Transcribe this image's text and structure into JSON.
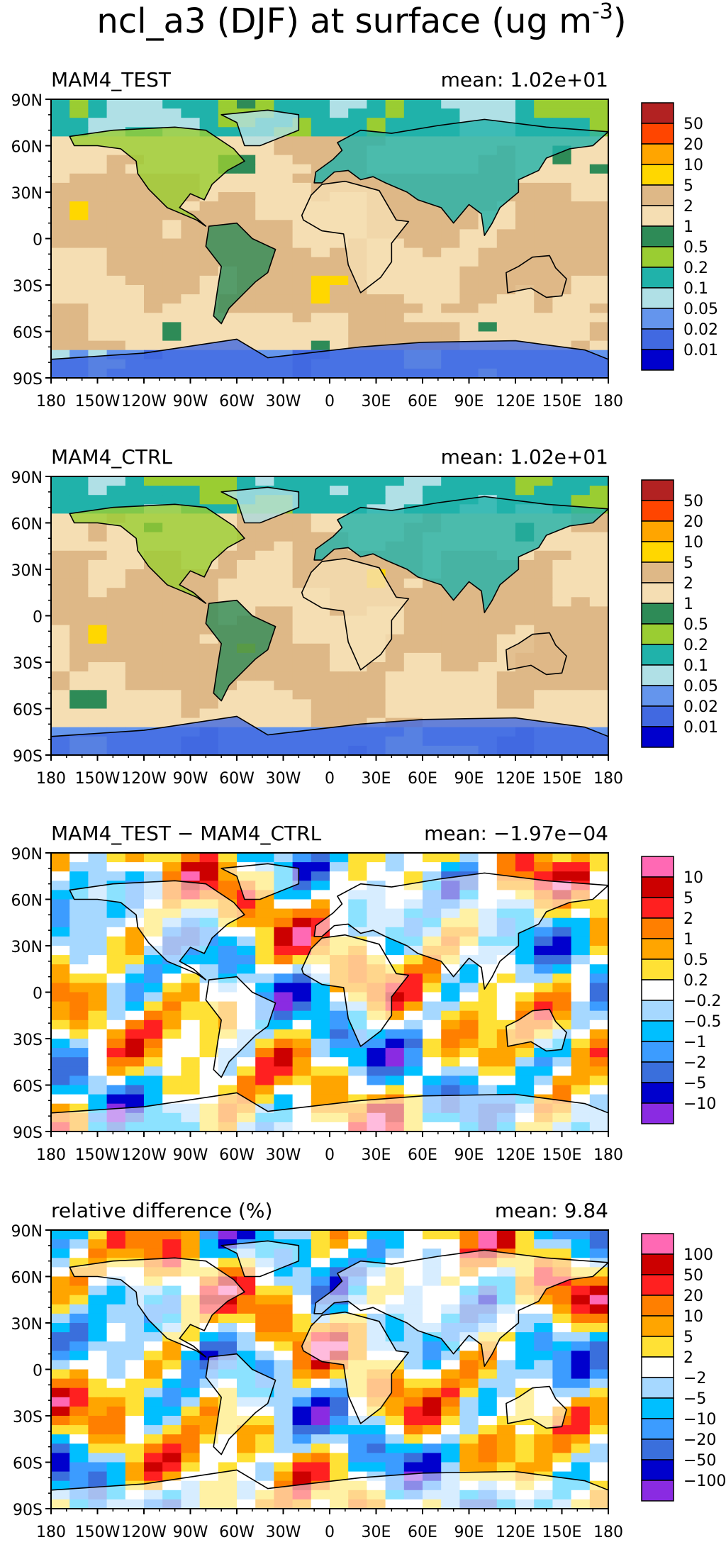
{
  "title": "ncl_a3 (DJF) at surface (ug m",
  "title_superscript": "-3",
  "title_close": ")",
  "xticks": [
    "180",
    "150W",
    "120W",
    "90W",
    "60W",
    "30W",
    "0",
    "30E",
    "60E",
    "90E",
    "120E",
    "150E",
    "180"
  ],
  "yticks": [
    "90N",
    "60N",
    "30N",
    "0",
    "30S",
    "60S",
    "90S"
  ],
  "mean_prefix": "mean:",
  "chart_data": [
    {
      "type": "heatmap",
      "panel": "MAM4_TEST",
      "label": "MAM4_TEST",
      "mean": "1.02e+01",
      "x_range": [
        -180,
        180
      ],
      "y_range": [
        -90,
        90
      ],
      "colorbar_labels": [
        "50",
        "20",
        "10",
        "5",
        "2",
        "1",
        "0.5",
        "0.2",
        "0.1",
        "0.05",
        "0.02",
        "0.01"
      ],
      "colors": [
        "#b22222",
        "#ff4500",
        "#ffa500",
        "#ffd700",
        "#deb887",
        "#f5deb3",
        "#2e8b57",
        "#9acd32",
        "#20b2aa",
        "#b0e0e6",
        "#6495ed",
        "#4169e1",
        "#0000cd"
      ]
    },
    {
      "type": "heatmap",
      "panel": "MAM4_CTRL",
      "label": "MAM4_CTRL",
      "mean": "1.02e+01",
      "x_range": [
        -180,
        180
      ],
      "y_range": [
        -90,
        90
      ],
      "colorbar_labels": [
        "50",
        "20",
        "10",
        "5",
        "2",
        "1",
        "0.5",
        "0.2",
        "0.1",
        "0.05",
        "0.02",
        "0.01"
      ],
      "colors": [
        "#b22222",
        "#ff4500",
        "#ffa500",
        "#ffd700",
        "#deb887",
        "#f5deb3",
        "#2e8b57",
        "#9acd32",
        "#20b2aa",
        "#b0e0e6",
        "#6495ed",
        "#4169e1",
        "#0000cd"
      ]
    },
    {
      "type": "heatmap",
      "panel": "difference",
      "label": "MAM4_TEST − MAM4_CTRL",
      "mean": "−1.97e−04",
      "x_range": [
        -180,
        180
      ],
      "y_range": [
        -90,
        90
      ],
      "colorbar_labels": [
        "10",
        "5",
        "2",
        "1",
        "0.5",
        "0.2",
        "−0.2",
        "−0.5",
        "−1",
        "−2",
        "−5",
        "−10"
      ],
      "colors": [
        "#ff69b4",
        "#cc0000",
        "#ff2020",
        "#ff7f00",
        "#ffa500",
        "#ffe135",
        "#ffffff",
        "#a6d8ff",
        "#00bfff",
        "#3c9cff",
        "#3a6fdc",
        "#0000cd",
        "#8a2be2"
      ]
    },
    {
      "type": "heatmap",
      "panel": "relative_difference",
      "label": "relative difference (%)",
      "mean": "9.84",
      "x_range": [
        -180,
        180
      ],
      "y_range": [
        -90,
        90
      ],
      "colorbar_labels": [
        "100",
        "50",
        "20",
        "10",
        "5",
        "2",
        "−2",
        "−5",
        "−10",
        "−20",
        "−50",
        "−100"
      ],
      "colors": [
        "#ff69b4",
        "#cc0000",
        "#ff2020",
        "#ff7f00",
        "#ffa500",
        "#ffe135",
        "#ffffff",
        "#a6d8ff",
        "#00bfff",
        "#3c9cff",
        "#3a6fdc",
        "#0000cd",
        "#8a2be2"
      ]
    }
  ]
}
